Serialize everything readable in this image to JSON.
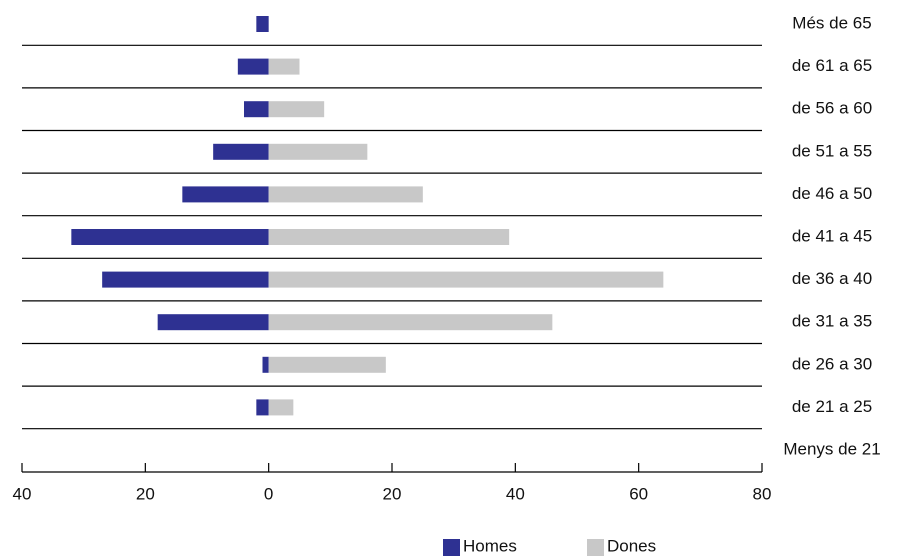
{
  "chart_data": {
    "type": "bar",
    "orientation": "horizontal",
    "categories": [
      "Més de 65",
      "de 61 a 65",
      "de 56 a 60",
      "de 51 a 55",
      "de 46 a 50",
      "de 41 a 45",
      "de 36 a 40",
      "de 31 a 35",
      "de 26 a 30",
      "de 21 a 25",
      "Menys de 21"
    ],
    "series": [
      {
        "name": "Homes",
        "color": "#2e3192",
        "values": [
          -2,
          -5,
          -4,
          -9,
          -14,
          -32,
          -27,
          -18,
          -1,
          -2,
          0
        ]
      },
      {
        "name": "Dones",
        "color": "#c8c8c8",
        "values": [
          0,
          5,
          9,
          16,
          25,
          39,
          64,
          46,
          19,
          4,
          0
        ]
      }
    ],
    "xlim": [
      -40,
      80
    ],
    "xticks": [
      {
        "value": -40,
        "label": "40"
      },
      {
        "value": -20,
        "label": "20"
      },
      0,
      20,
      40,
      60,
      80
    ]
  }
}
